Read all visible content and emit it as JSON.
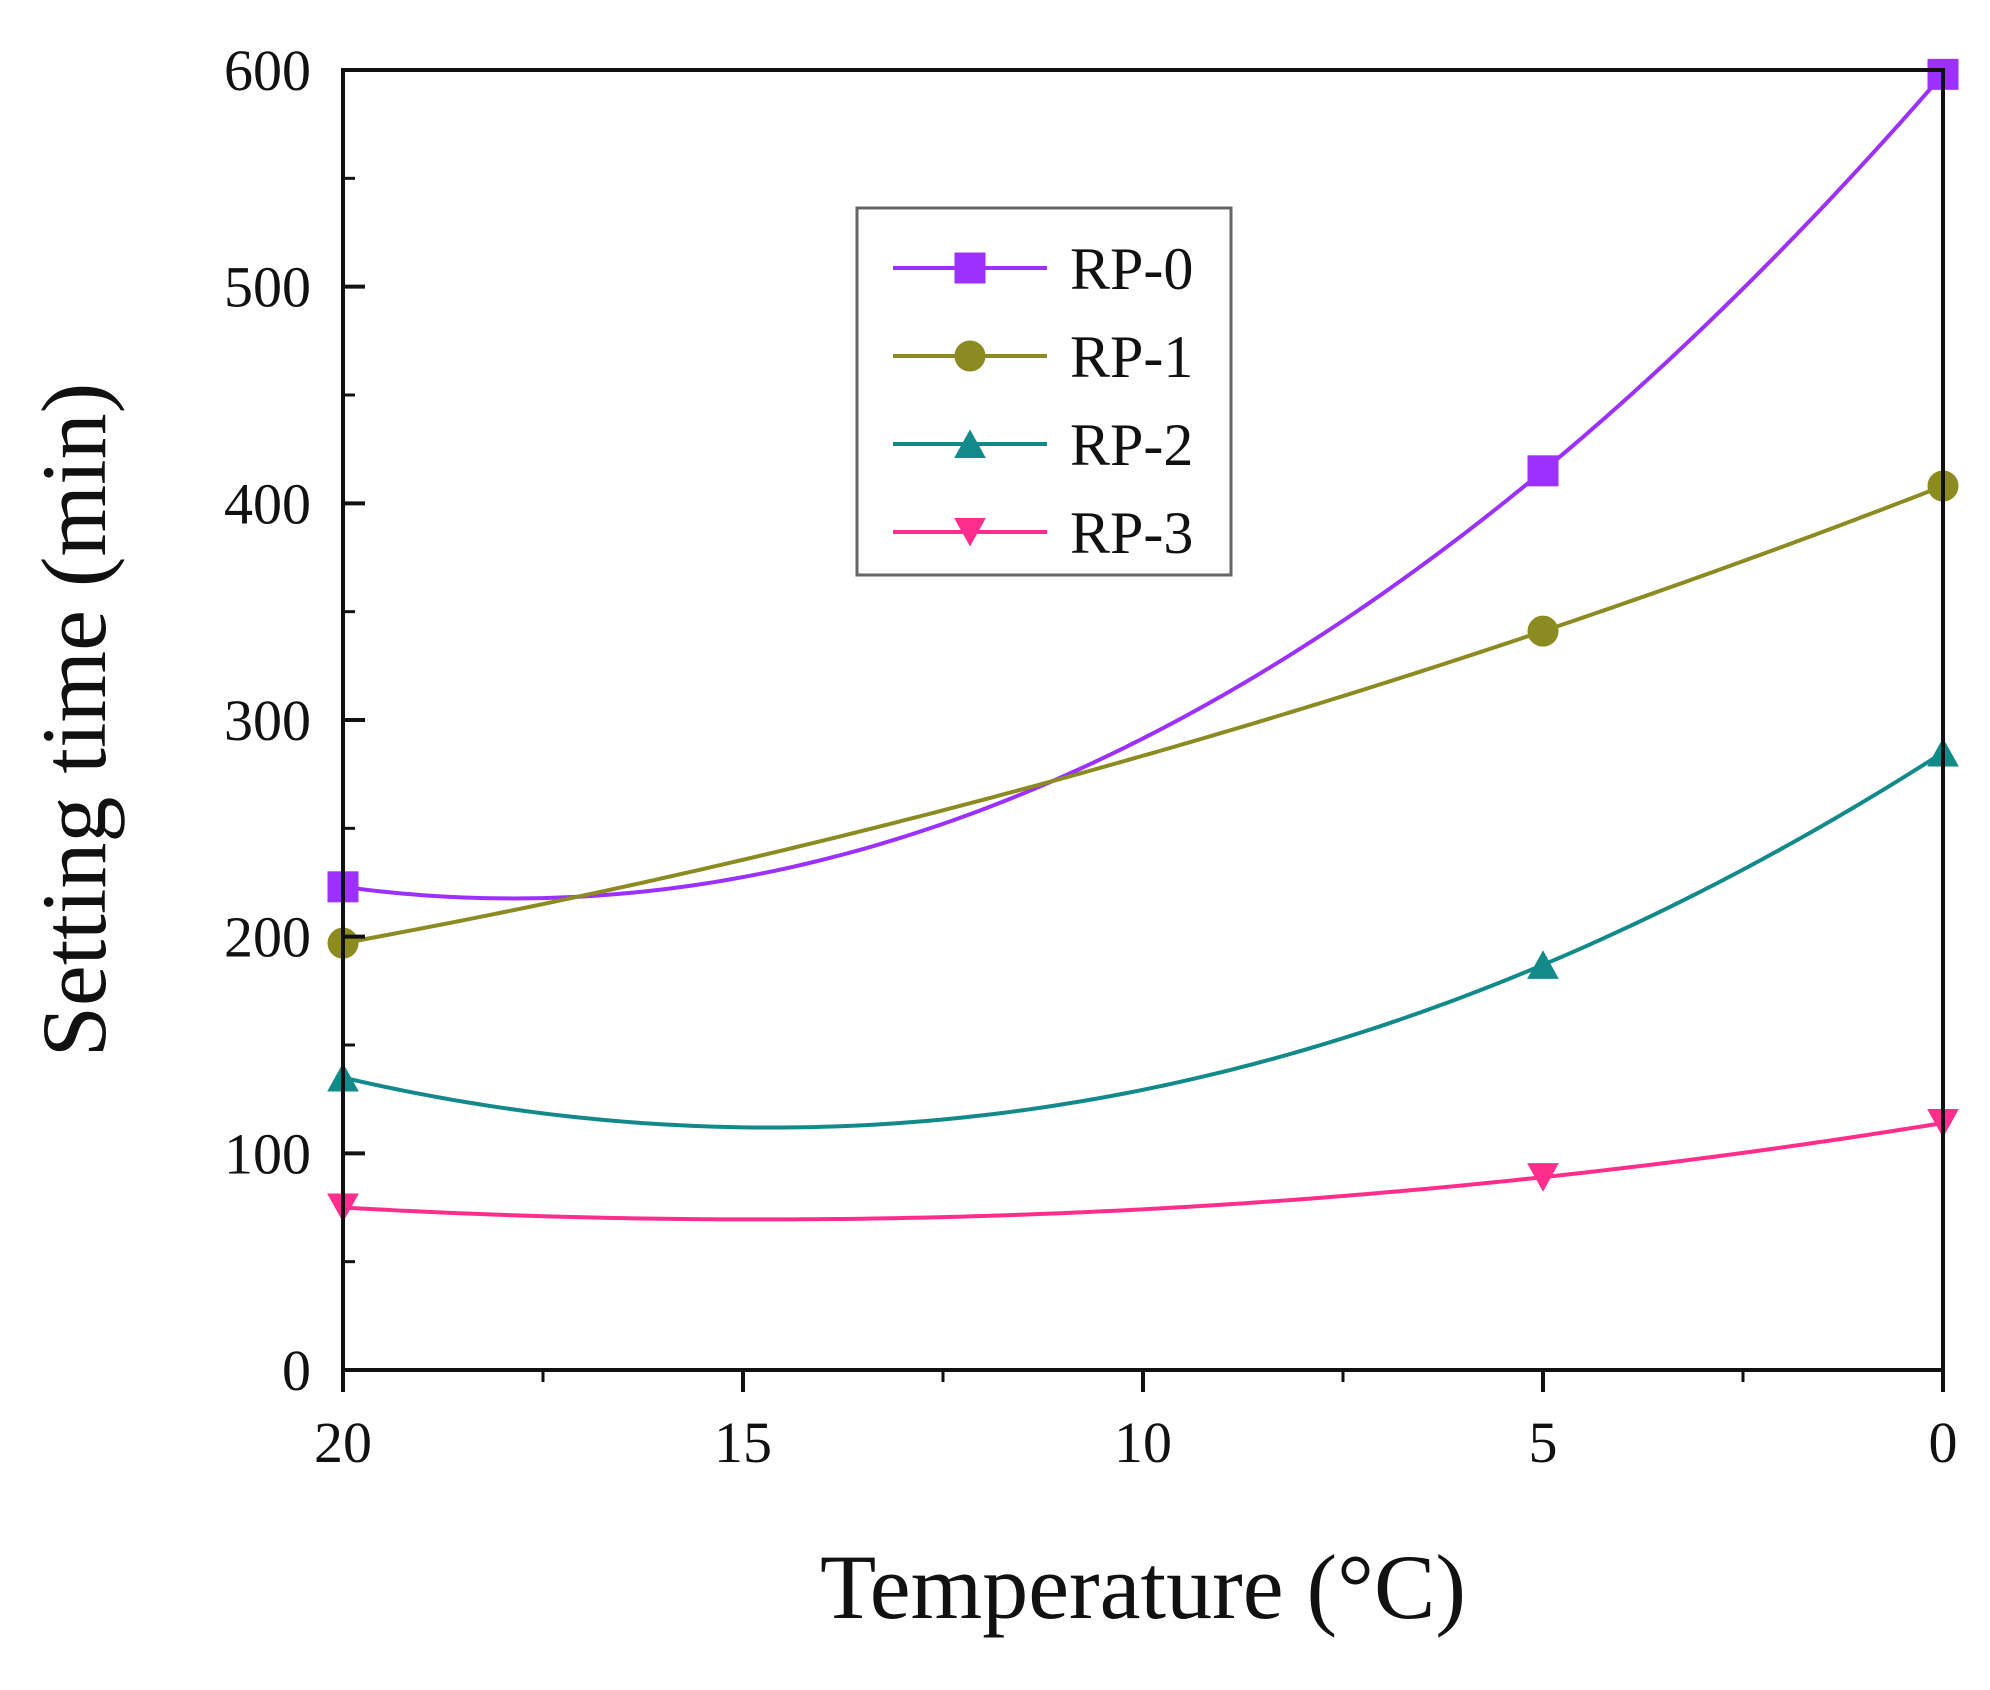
{
  "chart_data": {
    "type": "line",
    "title": "",
    "xlabel": "Temperature (°C)",
    "ylabel": "Setting time (min)",
    "xlim": [
      20,
      0
    ],
    "ylim": [
      0,
      600
    ],
    "x_ticks": [
      20,
      15,
      10,
      5,
      0
    ],
    "y_ticks": [
      0,
      100,
      200,
      300,
      400,
      500,
      600
    ],
    "x_tick_labels": [
      "20",
      "15",
      "10",
      "5",
      "0"
    ],
    "y_tick_labels": [
      "0",
      "100",
      "200",
      "300",
      "400",
      "500",
      "600"
    ],
    "legend_position": "upper-center",
    "x": [
      20,
      5,
      0
    ],
    "series": [
      {
        "name": "RP-0",
        "values": [
          223,
          415,
          598
        ],
        "color": "#9B30FF",
        "marker": "square"
      },
      {
        "name": "RP-1",
        "values": [
          197,
          341,
          408
        ],
        "color": "#8B8B22",
        "marker": "circle"
      },
      {
        "name": "RP-2",
        "values": [
          135,
          187,
          285
        ],
        "color": "#138A8A",
        "marker": "triangle-up"
      },
      {
        "name": "RP-3",
        "values": [
          75,
          89,
          114
        ],
        "color": "#FF2D8C",
        "marker": "triangle-down"
      }
    ]
  }
}
